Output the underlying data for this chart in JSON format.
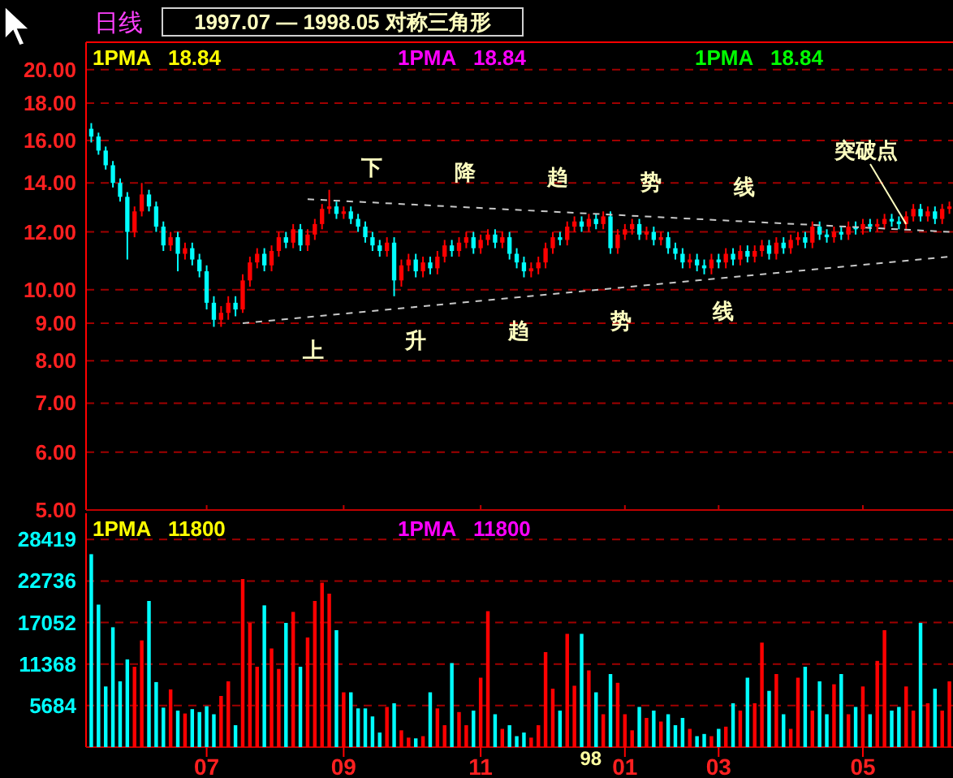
{
  "chart_data": [
    {
      "type": "candlestick",
      "title": "1997.07 — 1998.05 对称三角形",
      "subtitle": "日线",
      "log": true,
      "grid": "y",
      "tick_labels": "y",
      "colors": [
        "#00ffff",
        "#00ffff",
        "#00ffff",
        "#00ffff",
        "#00ffff",
        "#00ffff",
        "#ff0000",
        "#ff0000",
        "#00ffff",
        "#00ffff",
        "#00ffff",
        "#ff0000",
        "#00ffff",
        "#ff0000",
        "#00ffff",
        "#00ffff",
        "#00ffff",
        "#00ffff",
        "#ff0000",
        "#ff0000",
        "#00ffff",
        "#ff0000",
        "#ff0000",
        "#ff0000",
        "#00ffff",
        "#ff0000",
        "#ff0000",
        "#00ffff",
        "#ff0000",
        "#00ffff",
        "#ff0000",
        "#ff0000",
        "#ff0000",
        "#ff0000",
        "#00ffff",
        "#ff0000",
        "#00ffff",
        "#00ffff",
        "#00ffff",
        "#00ffff",
        "#00ffff",
        "#ff0000",
        "#00ffff",
        "#ff0000",
        "#ff0000",
        "#00ffff",
        "#ff0000",
        "#00ffff",
        "#ff0000",
        "#ff0000",
        "#00ffff",
        "#ff0000",
        "#ff0000",
        "#00ffff",
        "#ff0000",
        "#ff0000",
        "#00ffff",
        "#ff0000",
        "#00ffff",
        "#00ffff",
        "#00ffff",
        "#ff0000",
        "#ff0000",
        "#ff0000",
        "#ff0000",
        "#00ffff",
        "#ff0000",
        "#ff0000",
        "#00ffff",
        "#ff0000",
        "#00ffff",
        "#ff0000",
        "#00ffff",
        "#ff0000",
        "#ff0000",
        "#ff0000",
        "#00ffff",
        "#ff0000",
        "#00ffff",
        "#ff0000",
        "#00ffff",
        "#00ffff",
        "#00ffff",
        "#ff0000",
        "#00ffff",
        "#00ffff",
        "#ff0000",
        "#00ffff",
        "#ff0000",
        "#00ffff",
        "#ff0000",
        "#00ffff",
        "#ff0000",
        "#ff0000",
        "#00ffff",
        "#ff0000",
        "#00ffff",
        "#ff0000",
        "#ff0000",
        "#00ffff",
        "#ff0000",
        "#00ffff",
        "#00ffff",
        "#ff0000",
        "#00ffff",
        "#ff0000",
        "#00ffff",
        "#ff0000",
        "#00ffff",
        "#ff0000",
        "#ff0000",
        "#00ffff",
        "#00ffff",
        "#ff0000",
        "#ff0000",
        "#00ffff",
        "#ff0000",
        "#00ffff",
        "#ff0000",
        "#ff0000"
      ],
      "categories": [
        null,
        null,
        null,
        null,
        null,
        null,
        null,
        null,
        null,
        null,
        null,
        null,
        null,
        null,
        null,
        null,
        "07",
        null,
        null,
        null,
        null,
        null,
        null,
        null,
        null,
        null,
        null,
        null,
        null,
        null,
        null,
        null,
        null,
        null,
        null,
        "09",
        null,
        null,
        null,
        null,
        null,
        null,
        null,
        null,
        null,
        null,
        null,
        null,
        null,
        null,
        null,
        null,
        null,
        null,
        "11",
        null,
        null,
        null,
        null,
        null,
        null,
        null,
        null,
        null,
        null,
        null,
        null,
        null,
        null,
        null,
        null,
        null,
        null,
        null,
        "01",
        null,
        null,
        null,
        null,
        null,
        null,
        null,
        null,
        null,
        null,
        null,
        null,
        "03",
        null,
        null,
        null,
        null,
        null,
        null,
        null,
        null,
        null,
        null,
        null,
        null,
        null,
        null,
        null,
        null,
        null,
        null,
        null,
        "05",
        null,
        null,
        null,
        null,
        null,
        null,
        null,
        null,
        null,
        null,
        null,
        null
      ],
      "ylim": [
        5,
        21.8
      ],
      "yticks": [
        {
          "value": 5,
          "label": "5.00"
        },
        {
          "value": 6,
          "label": "6.00"
        },
        {
          "value": 7,
          "label": "7.00"
        },
        {
          "value": 8,
          "label": "8.00"
        },
        {
          "value": 9,
          "label": "9.00"
        },
        {
          "value": 10,
          "label": "10.00"
        },
        {
          "value": 12,
          "label": "12.00"
        },
        {
          "value": 14,
          "label": "14.00"
        },
        {
          "value": 16,
          "label": "16.00"
        },
        {
          "value": 18,
          "label": "18.00"
        },
        {
          "value": 20,
          "label": "20.00"
        }
      ],
      "ohlc": [
        [
          16.6,
          16.9,
          15.9,
          16.2
        ],
        [
          16.2,
          16.4,
          15.3,
          15.5
        ],
        [
          15.5,
          15.7,
          14.6,
          14.8
        ],
        [
          14.8,
          15.0,
          13.8,
          14.0
        ],
        [
          14.0,
          14.2,
          13.2,
          13.4
        ],
        [
          13.4,
          13.6,
          11.0,
          12.0
        ],
        [
          12.0,
          13.0,
          11.8,
          12.8
        ],
        [
          12.8,
          14.0,
          12.6,
          13.5
        ],
        [
          13.5,
          13.7,
          12.8,
          13.0
        ],
        [
          13.0,
          13.2,
          12.0,
          12.2
        ],
        [
          12.2,
          12.4,
          11.3,
          11.5
        ],
        [
          11.5,
          12.0,
          11.3,
          11.8
        ],
        [
          11.8,
          12.0,
          10.6,
          11.2
        ],
        [
          11.2,
          11.6,
          11.0,
          11.4
        ],
        [
          11.4,
          11.6,
          10.8,
          11.0
        ],
        [
          11.0,
          11.2,
          10.4,
          10.6
        ],
        [
          10.6,
          10.8,
          9.4,
          9.6
        ],
        [
          9.6,
          9.8,
          8.9,
          9.1
        ],
        [
          9.1,
          9.5,
          8.9,
          9.3
        ],
        [
          9.3,
          9.8,
          9.1,
          9.6
        ],
        [
          9.6,
          9.8,
          9.2,
          9.4
        ],
        [
          9.4,
          10.5,
          9.3,
          10.3
        ],
        [
          10.3,
          11.1,
          10.1,
          10.9
        ],
        [
          10.9,
          11.4,
          10.7,
          11.2
        ],
        [
          11.2,
          11.4,
          10.6,
          10.8
        ],
        [
          10.8,
          11.5,
          10.6,
          11.3
        ],
        [
          11.3,
          12.0,
          11.1,
          11.8
        ],
        [
          11.8,
          12.0,
          11.4,
          11.6
        ],
        [
          11.6,
          12.3,
          11.4,
          12.1
        ],
        [
          12.1,
          12.3,
          11.3,
          11.5
        ],
        [
          11.5,
          12.1,
          11.3,
          11.9
        ],
        [
          11.9,
          12.5,
          11.7,
          12.3
        ],
        [
          12.3,
          13.1,
          12.1,
          12.9
        ],
        [
          12.9,
          13.7,
          12.7,
          13.0
        ],
        [
          13.0,
          13.2,
          12.5,
          12.7
        ],
        [
          12.7,
          13.0,
          12.5,
          12.8
        ],
        [
          12.8,
          13.0,
          12.3,
          12.5
        ],
        [
          12.5,
          12.7,
          12.0,
          12.2
        ],
        [
          12.2,
          12.4,
          11.6,
          11.8
        ],
        [
          11.8,
          12.0,
          11.3,
          11.5
        ],
        [
          11.5,
          11.7,
          11.1,
          11.3
        ],
        [
          11.3,
          11.8,
          11.1,
          11.6
        ],
        [
          11.6,
          11.8,
          9.8,
          10.3
        ],
        [
          10.3,
          11.0,
          10.1,
          10.8
        ],
        [
          10.8,
          11.2,
          10.6,
          11.0
        ],
        [
          11.0,
          11.2,
          10.4,
          10.6
        ],
        [
          10.6,
          11.1,
          10.4,
          10.9
        ],
        [
          10.9,
          11.1,
          10.5,
          10.7
        ],
        [
          10.7,
          11.3,
          10.5,
          11.1
        ],
        [
          11.1,
          11.7,
          10.9,
          11.5
        ],
        [
          11.5,
          11.7,
          11.1,
          11.3
        ],
        [
          11.3,
          11.8,
          11.1,
          11.6
        ],
        [
          11.6,
          12.0,
          11.4,
          11.8
        ],
        [
          11.8,
          12.0,
          11.2,
          11.4
        ],
        [
          11.4,
          11.9,
          11.2,
          11.7
        ],
        [
          11.7,
          12.1,
          11.5,
          11.9
        ],
        [
          11.9,
          12.1,
          11.4,
          11.6
        ],
        [
          11.6,
          12.0,
          11.4,
          11.8
        ],
        [
          11.8,
          12.0,
          11.0,
          11.2
        ],
        [
          11.2,
          11.4,
          10.7,
          10.9
        ],
        [
          10.9,
          11.1,
          10.4,
          10.6
        ],
        [
          10.6,
          10.9,
          10.4,
          10.7
        ],
        [
          10.7,
          11.1,
          10.5,
          10.9
        ],
        [
          10.9,
          11.6,
          10.7,
          11.4
        ],
        [
          11.4,
          12.0,
          11.2,
          11.8
        ],
        [
          11.8,
          12.0,
          11.5,
          11.7
        ],
        [
          11.7,
          12.4,
          11.5,
          12.2
        ],
        [
          12.2,
          12.6,
          12.0,
          12.4
        ],
        [
          12.4,
          12.6,
          12.0,
          12.2
        ],
        [
          12.2,
          12.7,
          12.0,
          12.5
        ],
        [
          12.5,
          12.7,
          12.1,
          12.3
        ],
        [
          12.3,
          12.8,
          12.1,
          12.6
        ],
        [
          12.6,
          12.8,
          11.2,
          11.4
        ],
        [
          11.4,
          12.1,
          11.2,
          11.9
        ],
        [
          11.9,
          12.3,
          11.7,
          12.1
        ],
        [
          12.1,
          12.5,
          11.9,
          12.3
        ],
        [
          12.3,
          12.5,
          11.7,
          11.9
        ],
        [
          11.9,
          12.2,
          11.7,
          12.0
        ],
        [
          12.0,
          12.2,
          11.5,
          11.7
        ],
        [
          11.7,
          12.0,
          11.5,
          11.8
        ],
        [
          11.8,
          12.0,
          11.2,
          11.4
        ],
        [
          11.4,
          11.6,
          11.0,
          11.2
        ],
        [
          11.2,
          11.4,
          10.7,
          10.9
        ],
        [
          10.9,
          11.2,
          10.7,
          11.0
        ],
        [
          11.0,
          11.2,
          10.6,
          10.8
        ],
        [
          10.8,
          11.0,
          10.5,
          10.7
        ],
        [
          10.7,
          11.2,
          10.5,
          11.0
        ],
        [
          11.0,
          11.2,
          10.7,
          10.9
        ],
        [
          10.9,
          11.4,
          10.7,
          11.2
        ],
        [
          11.2,
          11.4,
          10.8,
          11.0
        ],
        [
          11.0,
          11.5,
          10.8,
          11.3
        ],
        [
          11.3,
          11.5,
          10.9,
          11.1
        ],
        [
          11.1,
          11.5,
          10.9,
          11.3
        ],
        [
          11.3,
          11.7,
          11.1,
          11.5
        ],
        [
          11.5,
          11.7,
          11.0,
          11.2
        ],
        [
          11.2,
          11.8,
          11.0,
          11.6
        ],
        [
          11.6,
          11.8,
          11.2,
          11.4
        ],
        [
          11.4,
          11.9,
          11.2,
          11.7
        ],
        [
          11.7,
          12.0,
          11.5,
          11.8
        ],
        [
          11.8,
          12.0,
          11.4,
          11.6
        ],
        [
          11.6,
          12.4,
          11.4,
          12.2
        ],
        [
          12.2,
          12.4,
          11.7,
          11.9
        ],
        [
          11.9,
          12.1,
          11.6,
          11.8
        ],
        [
          11.8,
          12.2,
          11.6,
          12.0
        ],
        [
          12.0,
          12.2,
          11.7,
          11.9
        ],
        [
          11.9,
          12.4,
          11.7,
          12.2
        ],
        [
          12.2,
          12.4,
          11.9,
          12.1
        ],
        [
          12.1,
          12.5,
          11.9,
          12.3
        ],
        [
          12.3,
          12.5,
          12.0,
          12.2
        ],
        [
          12.2,
          12.5,
          12.0,
          12.3
        ],
        [
          12.3,
          12.7,
          12.1,
          12.5
        ],
        [
          12.5,
          12.7,
          12.2,
          12.4
        ],
        [
          12.4,
          12.6,
          12.1,
          12.3
        ],
        [
          12.3,
          12.8,
          12.1,
          12.6
        ],
        [
          12.6,
          13.1,
          12.4,
          12.9
        ],
        [
          12.9,
          13.1,
          12.4,
          12.6
        ],
        [
          12.6,
          13.0,
          12.4,
          12.8
        ],
        [
          12.8,
          13.0,
          12.3,
          12.5
        ],
        [
          12.5,
          13.1,
          12.3,
          12.9
        ],
        [
          12.9,
          13.2,
          12.7,
          13.0
        ]
      ],
      "series": [
        {
          "type": "line",
          "name": "下降趋势线",
          "color": "#c8c8c8",
          "line_style": "dashed",
          "values": [
            null,
            null,
            null,
            null,
            null,
            null,
            null,
            null,
            null,
            null,
            null,
            null,
            null,
            null,
            null,
            null,
            null,
            null,
            null,
            null,
            null,
            null,
            null,
            null,
            null,
            null,
            null,
            null,
            null,
            null,
            13.3,
            null,
            null,
            null,
            null,
            null,
            null,
            null,
            null,
            null,
            null,
            null,
            null,
            null,
            null,
            null,
            null,
            null,
            null,
            null,
            null,
            null,
            null,
            null,
            null,
            null,
            null,
            null,
            null,
            null,
            null,
            null,
            null,
            null,
            null,
            null,
            null,
            null,
            null,
            null,
            null,
            null,
            null,
            null,
            null,
            null,
            null,
            null,
            null,
            null,
            null,
            null,
            null,
            null,
            null,
            null,
            null,
            null,
            null,
            null,
            null,
            null,
            null,
            null,
            null,
            null,
            null,
            null,
            null,
            null,
            null,
            null,
            null,
            null,
            null,
            null,
            null,
            null,
            null,
            null,
            null,
            null,
            null,
            null,
            null,
            null,
            null,
            null,
            null,
            12.0
          ]
        },
        {
          "type": "line",
          "name": "上升趋势线",
          "color": "#c8c8c8",
          "line_style": "dashed",
          "values": [
            null,
            null,
            null,
            null,
            null,
            null,
            null,
            null,
            null,
            null,
            null,
            null,
            null,
            null,
            null,
            null,
            null,
            null,
            null,
            null,
            null,
            9.0,
            null,
            null,
            null,
            null,
            null,
            null,
            null,
            null,
            null,
            null,
            null,
            null,
            null,
            null,
            null,
            null,
            null,
            null,
            null,
            null,
            null,
            null,
            null,
            null,
            null,
            null,
            null,
            null,
            null,
            null,
            null,
            null,
            null,
            null,
            null,
            null,
            null,
            null,
            null,
            null,
            null,
            null,
            null,
            null,
            null,
            null,
            null,
            null,
            null,
            null,
            null,
            null,
            null,
            null,
            null,
            null,
            null,
            null,
            null,
            null,
            null,
            null,
            null,
            null,
            null,
            null,
            null,
            null,
            null,
            null,
            null,
            null,
            null,
            null,
            null,
            null,
            null,
            null,
            null,
            null,
            null,
            null,
            null,
            null,
            null,
            null,
            null,
            null,
            null,
            null,
            null,
            null,
            null,
            null,
            null,
            null,
            null,
            11.1
          ]
        }
      ],
      "annotations": [
        "1PMA   18.84",
        "1PMA   18.84",
        "1PMA   18.84",
        {
          "text": "突破点",
          "y": 12.3
        }
      ]
    },
    {
      "type": "bar",
      "grid": "y",
      "ylim": [
        0,
        32000
      ],
      "yticks": [
        5684,
        11368,
        17052,
        22736,
        28419
      ],
      "categories": [
        null,
        null,
        null,
        null,
        null,
        null,
        null,
        null,
        null,
        null,
        null,
        null,
        null,
        null,
        null,
        null,
        "07",
        null,
        null,
        null,
        null,
        null,
        null,
        null,
        null,
        null,
        null,
        null,
        null,
        null,
        null,
        null,
        null,
        null,
        null,
        "09",
        null,
        null,
        null,
        null,
        null,
        null,
        null,
        null,
        null,
        null,
        null,
        null,
        null,
        null,
        null,
        null,
        null,
        null,
        "11",
        null,
        null,
        null,
        null,
        null,
        null,
        null,
        null,
        null,
        null,
        null,
        null,
        null,
        null,
        null,
        null,
        null,
        null,
        null,
        "01",
        null,
        null,
        null,
        null,
        null,
        null,
        null,
        null,
        null,
        null,
        null,
        null,
        "03",
        null,
        null,
        null,
        null,
        null,
        null,
        null,
        null,
        null,
        null,
        null,
        null,
        null,
        null,
        null,
        null,
        null,
        null,
        null,
        "05",
        null,
        null,
        null,
        null,
        null,
        null,
        null,
        null,
        null,
        null,
        null,
        null
      ],
      "values": [
        26400,
        19500,
        8300,
        16400,
        9000,
        12000,
        11000,
        14600,
        20000,
        8900,
        5400,
        7900,
        5000,
        4600,
        5200,
        4800,
        5600,
        4500,
        7000,
        9000,
        3000,
        23000,
        17000,
        11000,
        19400,
        13500,
        10700,
        17000,
        18500,
        11000,
        15000,
        20000,
        22500,
        21000,
        16000,
        7500,
        7500,
        5300,
        5300,
        4200,
        2000,
        5500,
        6000,
        2300,
        1300,
        1200,
        1500,
        7500,
        5300,
        3000,
        11500,
        4800,
        3000,
        5000,
        9500,
        18600,
        4500,
        2500,
        3000,
        1500,
        2000,
        1300,
        3000,
        13000,
        8000,
        5000,
        15500,
        8400,
        15500,
        10500,
        7500,
        4500,
        10000,
        8800,
        4500,
        2300,
        5500,
        4000,
        5000,
        3500,
        4500,
        3000,
        4000,
        2500,
        1500,
        1800,
        1500,
        2500,
        2800,
        6000,
        5000,
        9500,
        6000,
        14300,
        7700,
        10000,
        4500,
        2500,
        9500,
        11000,
        5000,
        9000,
        4500,
        8600,
        10000,
        4500,
        5500,
        8300,
        4500,
        11800,
        16000,
        5000,
        5500,
        8300,
        5000,
        17000,
        6000,
        8000,
        5000,
        9000
      ],
      "colors": [
        "#00ffff",
        "#00ffff",
        "#00ffff",
        "#00ffff",
        "#00ffff",
        "#00ffff",
        "#ff0000",
        "#ff0000",
        "#00ffff",
        "#00ffff",
        "#00ffff",
        "#ff0000",
        "#00ffff",
        "#ff0000",
        "#00ffff",
        "#00ffff",
        "#00ffff",
        "#00ffff",
        "#ff0000",
        "#ff0000",
        "#00ffff",
        "#ff0000",
        "#ff0000",
        "#ff0000",
        "#00ffff",
        "#ff0000",
        "#ff0000",
        "#00ffff",
        "#ff0000",
        "#00ffff",
        "#ff0000",
        "#ff0000",
        "#ff0000",
        "#ff0000",
        "#00ffff",
        "#ff0000",
        "#00ffff",
        "#00ffff",
        "#00ffff",
        "#00ffff",
        "#00ffff",
        "#ff0000",
        "#00ffff",
        "#ff0000",
        "#ff0000",
        "#00ffff",
        "#ff0000",
        "#00ffff",
        "#ff0000",
        "#ff0000",
        "#00ffff",
        "#ff0000",
        "#ff0000",
        "#00ffff",
        "#ff0000",
        "#ff0000",
        "#00ffff",
        "#ff0000",
        "#00ffff",
        "#00ffff",
        "#00ffff",
        "#ff0000",
        "#ff0000",
        "#ff0000",
        "#ff0000",
        "#00ffff",
        "#ff0000",
        "#ff0000",
        "#00ffff",
        "#ff0000",
        "#00ffff",
        "#ff0000",
        "#00ffff",
        "#ff0000",
        "#ff0000",
        "#ff0000",
        "#00ffff",
        "#ff0000",
        "#00ffff",
        "#ff0000",
        "#00ffff",
        "#00ffff",
        "#00ffff",
        "#ff0000",
        "#00ffff",
        "#00ffff",
        "#ff0000",
        "#00ffff",
        "#ff0000",
        "#00ffff",
        "#ff0000",
        "#00ffff",
        "#ff0000",
        "#ff0000",
        "#00ffff",
        "#ff0000",
        "#00ffff",
        "#ff0000",
        "#ff0000",
        "#00ffff",
        "#ff0000",
        "#00ffff",
        "#00ffff",
        "#ff0000",
        "#00ffff",
        "#ff0000",
        "#00ffff",
        "#ff0000",
        "#00ffff",
        "#ff0000",
        "#ff0000",
        "#00ffff",
        "#00ffff",
        "#ff0000",
        "#ff0000",
        "#00ffff",
        "#ff0000",
        "#00ffff",
        "#ff0000",
        "#ff0000"
      ],
      "annotations": [
        "1PMA   11800",
        "1PMA   11800",
        "98"
      ]
    }
  ]
}
